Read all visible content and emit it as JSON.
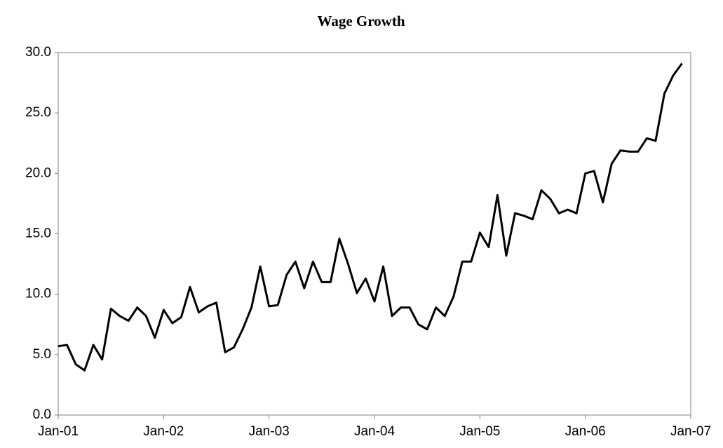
{
  "chart_data": {
    "type": "line",
    "title": "Wage Growth",
    "x": [
      "2001-01",
      "2001-02",
      "2001-03",
      "2001-04",
      "2001-05",
      "2001-06",
      "2001-07",
      "2001-08",
      "2001-09",
      "2001-10",
      "2001-11",
      "2001-12",
      "2002-01",
      "2002-02",
      "2002-03",
      "2002-04",
      "2002-05",
      "2002-06",
      "2002-07",
      "2002-08",
      "2002-09",
      "2002-10",
      "2002-11",
      "2002-12",
      "2003-01",
      "2003-02",
      "2003-03",
      "2003-04",
      "2003-05",
      "2003-06",
      "2003-07",
      "2003-08",
      "2003-09",
      "2003-10",
      "2003-11",
      "2003-12",
      "2004-01",
      "2004-02",
      "2004-03",
      "2004-04",
      "2004-05",
      "2004-06",
      "2004-07",
      "2004-08",
      "2004-09",
      "2004-10",
      "2004-11",
      "2004-12",
      "2005-01",
      "2005-02",
      "2005-03",
      "2005-04",
      "2005-05",
      "2005-06",
      "2005-07",
      "2005-08",
      "2005-09",
      "2005-10",
      "2005-11",
      "2005-12",
      "2006-01",
      "2006-02",
      "2006-03",
      "2006-04",
      "2006-05",
      "2006-06",
      "2006-07",
      "2006-08",
      "2006-09",
      "2006-10",
      "2006-11",
      "2006-12"
    ],
    "series": [
      {
        "color": "#000000",
        "values": [
          5.7,
          5.8,
          4.2,
          3.7,
          5.8,
          4.6,
          8.8,
          8.2,
          7.8,
          8.9,
          8.2,
          6.4,
          8.7,
          7.6,
          8.1,
          10.6,
          8.5,
          9.0,
          9.3,
          5.2,
          5.6,
          7.1,
          8.9,
          12.3,
          9.0,
          9.1,
          11.6,
          12.7,
          10.5,
          12.7,
          11.0,
          11.0,
          14.6,
          12.5,
          10.1,
          11.3,
          9.4,
          12.3,
          8.2,
          8.9,
          8.9,
          7.5,
          7.1,
          8.9,
          8.2,
          9.8,
          12.7,
          12.7,
          15.1,
          13.9,
          18.2,
          13.2,
          16.7,
          16.5,
          16.2,
          18.6,
          17.9,
          16.7,
          17.0,
          16.7,
          20.0,
          20.2,
          17.6,
          20.8,
          21.9,
          21.8,
          21.8,
          22.9,
          22.7,
          26.6,
          28.1,
          29.1
        ]
      }
    ],
    "xlim": [
      "2001-01",
      "2007-01"
    ],
    "xticks": [
      {
        "value": "2001-01",
        "label": "Jan-01"
      },
      {
        "value": "2002-01",
        "label": "Jan-02"
      },
      {
        "value": "2003-01",
        "label": "Jan-03"
      },
      {
        "value": "2004-01",
        "label": "Jan-04"
      },
      {
        "value": "2005-01",
        "label": "Jan-05"
      },
      {
        "value": "2006-01",
        "label": "Jan-06"
      },
      {
        "value": "2007-01",
        "label": "Jan-07"
      }
    ],
    "ylim": [
      0,
      30
    ],
    "yticks": [
      {
        "value": 0,
        "label": "0.0"
      },
      {
        "value": 5,
        "label": "5.0"
      },
      {
        "value": 10,
        "label": "10.0"
      },
      {
        "value": 15,
        "label": "15.0"
      },
      {
        "value": 20,
        "label": "20.0"
      },
      {
        "value": 25,
        "label": "25.0"
      },
      {
        "value": 30,
        "label": "30.0"
      }
    ],
    "grid": false
  }
}
